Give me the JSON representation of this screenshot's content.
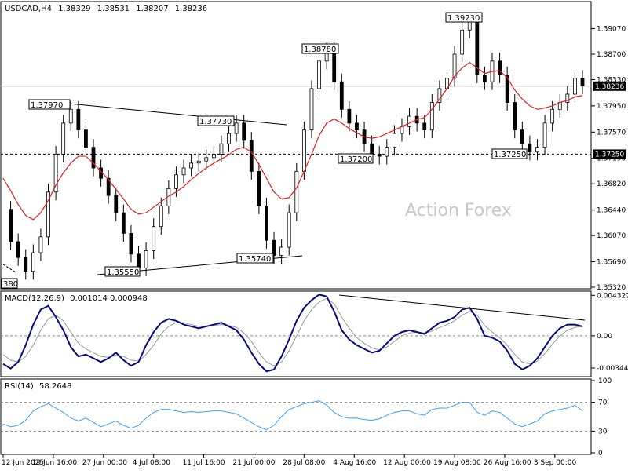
{
  "chart_data": {
    "type": "candlestick",
    "header": {
      "symbol": "USDCAD,H4",
      "open": "1.38329",
      "high": "1.38531",
      "low": "1.38207",
      "close": "1.38236"
    },
    "watermark": "Action Forex",
    "price_axis": {
      "range": [
        1.3532,
        1.3944
      ],
      "ticks": [
        "1.39070",
        "1.38700",
        "1.38330",
        "1.37950",
        "1.37570",
        "1.37190",
        "1.36820",
        "1.36440",
        "1.36070",
        "1.35690",
        "1.35320"
      ],
      "current_price": "1.38236",
      "marked_level": "1.37250"
    },
    "x_ticks": [
      "12 Jun 2025",
      "19 Jun 16:00",
      "27 Jun 00:00",
      "4 Jul 08:00",
      "11 Jul 16:00",
      "21 Jul 00:00",
      "28 Jul 08:00",
      "4 Aug 16:00",
      "12 Aug 00:00",
      "19 Aug 08:00",
      "26 Aug 16:00",
      "3 Sep 00:00"
    ],
    "price_labels": [
      "1.37970",
      "1.37730",
      "1.35550",
      "1.35740",
      "1.38780",
      "1.39230",
      "1.37200",
      "1.37250",
      "380"
    ],
    "close_series": [
      1.3645,
      1.3598,
      1.3575,
      1.3555,
      1.3582,
      1.3605,
      1.367,
      1.3725,
      1.377,
      1.379,
      1.376,
      1.3735,
      1.3705,
      1.369,
      1.3665,
      1.364,
      1.361,
      1.358,
      1.356,
      1.3585,
      1.362,
      1.365,
      1.3675,
      1.3695,
      1.3705,
      1.3712,
      1.3715,
      1.372,
      1.3725,
      1.374,
      1.3755,
      1.377,
      1.3745,
      1.37,
      1.365,
      1.36,
      1.3578,
      1.359,
      1.364,
      1.37,
      1.376,
      1.382,
      1.386,
      1.3875,
      1.383,
      1.379,
      1.377,
      1.376,
      1.374,
      1.3725,
      1.3722,
      1.3735,
      1.3755,
      1.3765,
      1.378,
      1.377,
      1.376,
      1.38,
      1.382,
      1.3835,
      1.387,
      1.3905,
      1.3918,
      1.384,
      1.383,
      1.386,
      1.384,
      1.38,
      1.376,
      1.374,
      1.3728,
      1.3735,
      1.377,
      1.379,
      1.38,
      1.3812,
      1.3835,
      1.3824
    ],
    "ma_series": [
      1.369,
      1.3672,
      1.3652,
      1.3636,
      1.363,
      1.364,
      1.3658,
      1.368,
      1.3698,
      1.3712,
      1.3722,
      1.3722,
      1.3712,
      1.37,
      1.3688,
      1.3674,
      1.366,
      1.3645,
      1.3638,
      1.364,
      1.3648,
      1.3656,
      1.3664,
      1.367,
      1.3678,
      1.3688,
      1.3697,
      1.3705,
      1.3712,
      1.3718,
      1.3724,
      1.3732,
      1.3735,
      1.3728,
      1.371,
      1.369,
      1.367,
      1.366,
      1.3662,
      1.3676,
      1.37,
      1.3725,
      1.3752,
      1.377,
      1.3776,
      1.377,
      1.3762,
      1.3756,
      1.375,
      1.3748,
      1.375,
      1.3755,
      1.376,
      1.3765,
      1.377,
      1.3775,
      1.3778,
      1.379,
      1.3805,
      1.382,
      1.3838,
      1.385,
      1.3858,
      1.385,
      1.3842,
      1.3845,
      1.3846,
      1.3836,
      1.3818,
      1.3805,
      1.3795,
      1.379,
      1.3792,
      1.3795,
      1.38,
      1.3803,
      1.3808,
      1.381
    ],
    "macd": {
      "name": "MACD(12,26,9)",
      "values": "0.001014 0.000948",
      "axis_labels": [
        "0.004327",
        "0.00",
        "-0.003444"
      ],
      "range": [
        -0.0042,
        0.0046
      ],
      "macd_series": [
        -0.003,
        -0.0035,
        -0.0028,
        -0.001,
        0.0012,
        0.0028,
        0.0032,
        0.002,
        0.0006,
        -0.0012,
        -0.0022,
        -0.002,
        -0.0024,
        -0.0028,
        -0.0024,
        -0.0018,
        -0.0026,
        -0.0032,
        -0.0028,
        -0.001,
        0.0004,
        0.0014,
        0.0018,
        0.0016,
        0.0012,
        0.001,
        0.0008,
        0.001,
        0.0012,
        0.0014,
        0.001,
        0.0006,
        -0.0004,
        -0.0018,
        -0.003,
        -0.0038,
        -0.0036,
        -0.0022,
        -0.0004,
        0.0016,
        0.003,
        0.0038,
        0.0044,
        0.0042,
        0.0026,
        0.0006,
        -0.0004,
        -0.001,
        -0.0014,
        -0.0018,
        -0.0016,
        -0.0008,
        0.0,
        0.0004,
        0.0006,
        0.0004,
        0.0002,
        0.0008,
        0.0014,
        0.0016,
        0.002,
        0.0028,
        0.003,
        0.0018,
        0.0,
        -0.0002,
        -0.0006,
        -0.0016,
        -0.003,
        -0.0036,
        -0.0032,
        -0.0024,
        -0.0012,
        0.0,
        0.0008,
        0.0012,
        0.0012,
        0.001
      ],
      "signal_series": [
        -0.002,
        -0.0026,
        -0.0028,
        -0.0022,
        -0.001,
        0.0006,
        0.0018,
        0.0022,
        0.0016,
        0.0004,
        -0.0008,
        -0.0014,
        -0.0018,
        -0.0022,
        -0.0023,
        -0.0021,
        -0.0022,
        -0.0026,
        -0.0027,
        -0.002,
        -0.001,
        0.0002,
        0.001,
        0.0014,
        0.0014,
        0.0012,
        0.001,
        0.001,
        0.0011,
        0.0012,
        0.0011,
        0.0009,
        0.0003,
        -0.0006,
        -0.0018,
        -0.0028,
        -0.0032,
        -0.0028,
        -0.0016,
        0.0,
        0.0016,
        0.0028,
        0.0036,
        0.004,
        0.0034,
        0.002,
        0.0008,
        -0.0002,
        -0.0008,
        -0.0013,
        -0.0015,
        -0.0012,
        -0.0006,
        0.0,
        0.0003,
        0.0004,
        0.0003,
        0.0005,
        0.0009,
        0.0012,
        0.0016,
        0.0022,
        0.0026,
        0.0022,
        0.0011,
        0.0004,
        -0.0002,
        -0.001,
        -0.002,
        -0.0028,
        -0.003,
        -0.0027,
        -0.0019,
        -0.0009,
        0.0,
        0.0006,
        0.0009,
        0.001
      ]
    },
    "rsi": {
      "name": "RSI(14)",
      "value": "58.2648",
      "axis_labels": [
        "100",
        "70",
        "30",
        "0"
      ],
      "range": [
        0,
        100
      ],
      "series": [
        40,
        36,
        38,
        45,
        58,
        64,
        68,
        62,
        56,
        48,
        44,
        48,
        42,
        36,
        40,
        44,
        38,
        34,
        38,
        48,
        56,
        60,
        60,
        58,
        56,
        57,
        56,
        57,
        58,
        58,
        56,
        54,
        48,
        42,
        36,
        32,
        38,
        50,
        60,
        64,
        68,
        70,
        72,
        66,
        56,
        50,
        48,
        48,
        46,
        45,
        47,
        52,
        56,
        58,
        58,
        54,
        52,
        60,
        62,
        62,
        66,
        70,
        70,
        56,
        52,
        58,
        56,
        48,
        40,
        36,
        40,
        44,
        54,
        58,
        60,
        62,
        66,
        58
      ]
    }
  }
}
